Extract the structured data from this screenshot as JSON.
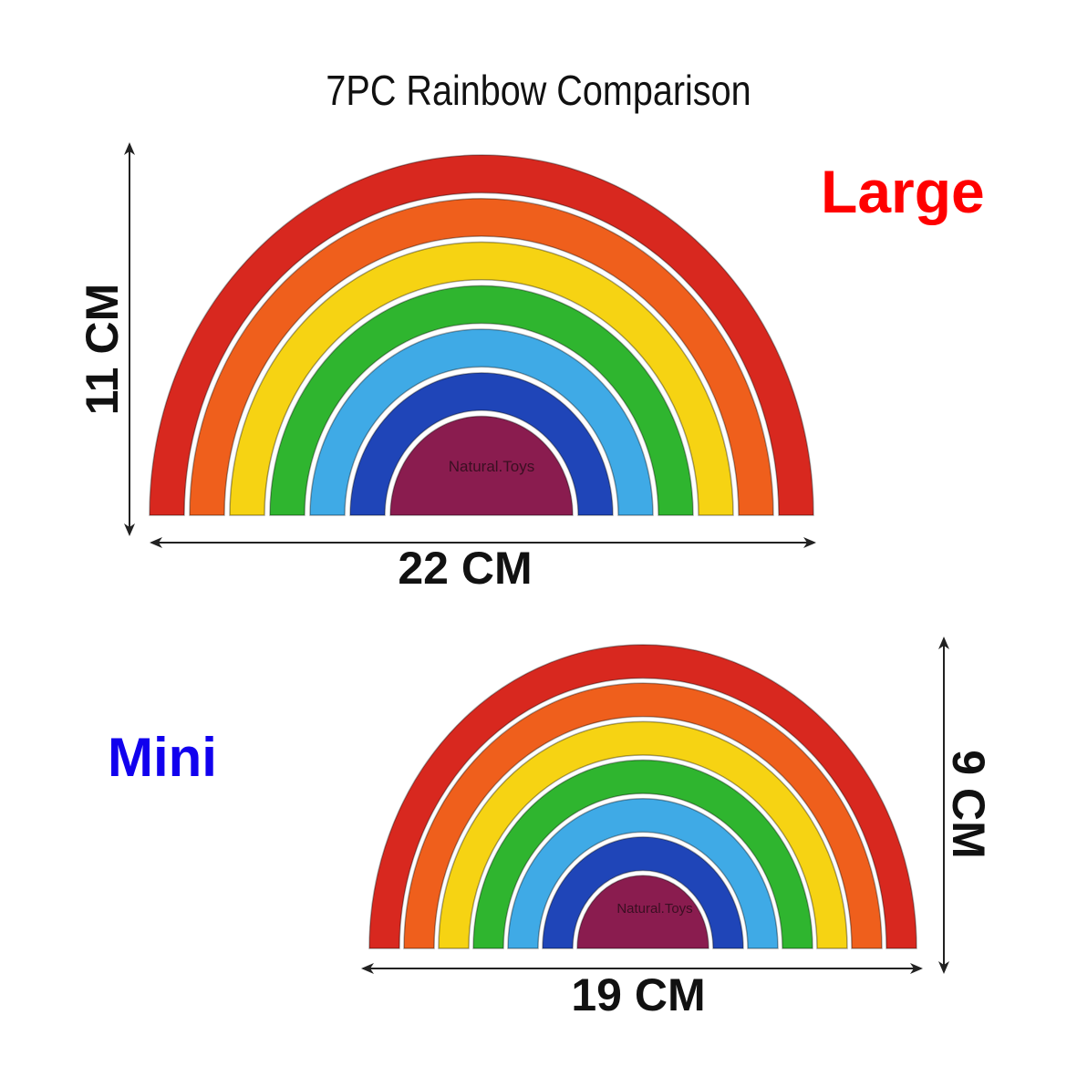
{
  "title": "7PC Rainbow Comparison",
  "large": {
    "label": "Large",
    "label_color": "#ff0000",
    "width_text": "22 CM",
    "height_text": "11 CM",
    "brand_text": "Natural.Toys"
  },
  "mini": {
    "label": "Mini",
    "label_color": "#1100ee",
    "width_text": "19 CM",
    "height_text": "9 CM",
    "brand_text": "Natural.Toys"
  },
  "arc_colors": [
    "#d8281f",
    "#ef5f1c",
    "#f6d313",
    "#2fb52f",
    "#3faae6",
    "#1f45b8",
    "#8a1c4f"
  ]
}
